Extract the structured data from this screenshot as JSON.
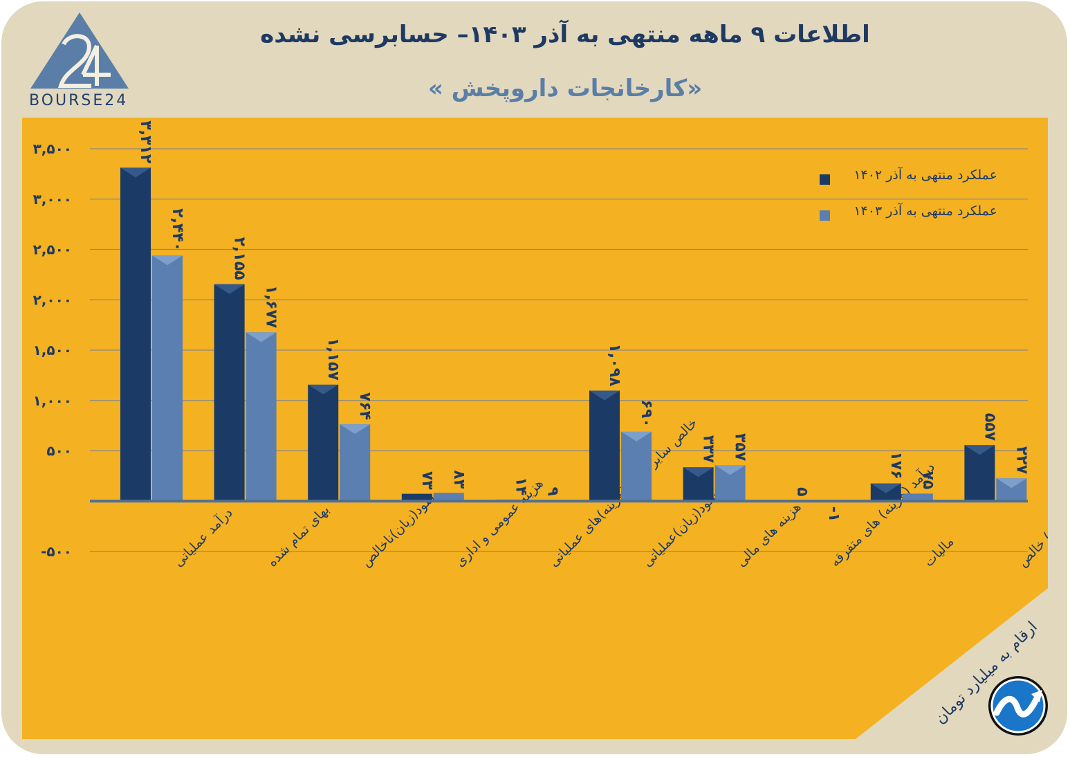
{
  "header": {
    "title": "اطلاعات ۹ ماهه منتهی به آذر ۱۴۰۳– حسابرسی نشده",
    "subtitle": "«کارخانجات داروپخش »"
  },
  "logo": {
    "text": "BOURSE24"
  },
  "units_note": "ارقام به میلیارد تومان",
  "colors": {
    "background": "#e2d8be",
    "panel": "#f4b122",
    "series_1402": "#1b3a66",
    "series_1403": "#5a7fb0",
    "text": "#1e3a62",
    "gridline": "#8d8a80"
  },
  "chart_data": {
    "type": "bar",
    "categories": [
      "درآمد عملیاتی",
      "بهای تمام شده",
      "سود(زیان)ناخالص",
      "هزینه عمومی و اداری",
      "خالص سایر درامد(هزینه)های عملیاتی",
      "سود(زیان)عملیاتی",
      "هزینه های مالی",
      "درآمد (هزینه) های متفرقه",
      "مالیات",
      "سود(زیان) خالص"
    ],
    "series": [
      {
        "name": "عملکرد منتهی به آذر ۱۴۰۲",
        "values": [
          3312,
          2155,
          1157,
          73,
          14,
          1098,
          337,
          5,
          176,
          557
        ],
        "labels": [
          "۳,۳۱۲",
          "۲,۱۵۵",
          "۱,۱۵۷",
          "۷۳",
          "۱۴",
          "۱,۰۹۸",
          "۳۳۷",
          "۵",
          "۱۷۶",
          "۵۵۷"
        ]
      },
      {
        "name": "عملکرد منتهی به آذر ۱۴۰۳",
        "values": [
          2440,
          1677,
          764,
          83,
          9,
          690,
          357,
          -1,
          75,
          227
        ],
        "labels": [
          "۲,۴۴۰",
          "۱,۶۷۷",
          "۷۶۴",
          "۸۳",
          "۹",
          "۶۹۰",
          "۳۵۷",
          "-۱",
          "۷۵",
          "۲۲۷"
        ]
      }
    ],
    "ylim": [
      -500,
      3500
    ],
    "yticks": [
      -500,
      0,
      500,
      1000,
      1500,
      2000,
      2500,
      3000,
      3500
    ],
    "ytick_labels": [
      "-۵۰۰",
      "",
      "۵۰۰",
      "۱,۰۰۰",
      "۱,۵۰۰",
      "۲,۰۰۰",
      "۲,۵۰۰",
      "۳,۰۰۰",
      "۳,۵۰۰"
    ],
    "grid": true,
    "legend_position": "top-right"
  }
}
